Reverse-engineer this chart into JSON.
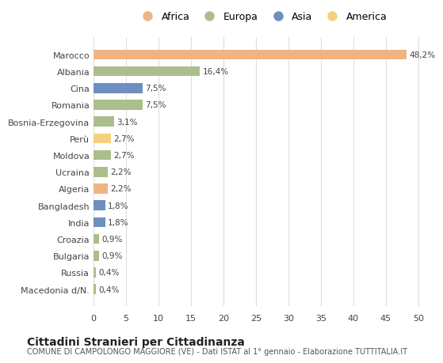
{
  "categories": [
    "Marocco",
    "Albania",
    "Cina",
    "Romania",
    "Bosnia-Erzegovina",
    "Perù",
    "Moldova",
    "Ucraina",
    "Algeria",
    "Bangladesh",
    "India",
    "Croazia",
    "Bulgaria",
    "Russia",
    "Macedonia d/N."
  ],
  "values": [
    48.2,
    16.4,
    7.5,
    7.5,
    3.1,
    2.7,
    2.7,
    2.2,
    2.2,
    1.8,
    1.8,
    0.9,
    0.9,
    0.4,
    0.4
  ],
  "labels": [
    "48,2%",
    "16,4%",
    "7,5%",
    "7,5%",
    "3,1%",
    "2,7%",
    "2,7%",
    "2,2%",
    "2,2%",
    "1,8%",
    "1,8%",
    "0,9%",
    "0,9%",
    "0,4%",
    "0,4%"
  ],
  "continents": [
    "Africa",
    "Europa",
    "Asia",
    "Europa",
    "Europa",
    "America",
    "Europa",
    "Europa",
    "Africa",
    "Asia",
    "Asia",
    "Europa",
    "Europa",
    "Europa",
    "Europa"
  ],
  "colors": {
    "Africa": "#F0B482",
    "Europa": "#ABBE8B",
    "Asia": "#6E8FC0",
    "America": "#F5D080"
  },
  "legend_order": [
    "Africa",
    "Europa",
    "Asia",
    "America"
  ],
  "title": "Cittadini Stranieri per Cittadinanza",
  "subtitle": "COMUNE DI CAMPOLONGO MAGGIORE (VE) - Dati ISTAT al 1° gennaio - Elaborazione TUTTITALIA.IT",
  "xlim": [
    0,
    52
  ],
  "xticks": [
    0,
    5,
    10,
    15,
    20,
    25,
    30,
    35,
    40,
    45,
    50
  ],
  "background_color": "#ffffff",
  "grid_color": "#dddddd"
}
